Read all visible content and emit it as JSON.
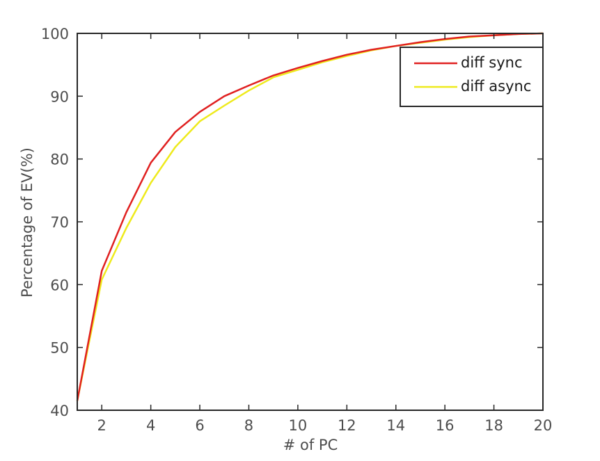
{
  "chart_data": {
    "type": "line",
    "title": "",
    "xlabel": "# of PC",
    "ylabel": "Percentage of EV(%)",
    "xlim": [
      1,
      20
    ],
    "ylim": [
      40,
      100
    ],
    "xticks": [
      2,
      4,
      6,
      8,
      10,
      12,
      14,
      16,
      18,
      20
    ],
    "xtick_labels": [
      "2",
      "4",
      "6",
      "8",
      "10",
      "12",
      "14",
      "16",
      "18",
      "20"
    ],
    "yticks": [
      40,
      50,
      60,
      70,
      80,
      90,
      100
    ],
    "ytick_labels": [
      "40",
      "50",
      "60",
      "70",
      "80",
      "90",
      "100"
    ],
    "grid": false,
    "legend_position": "top-right",
    "x": [
      1,
      2,
      3,
      4,
      5,
      6,
      7,
      8,
      9,
      10,
      11,
      12,
      13,
      14,
      15,
      16,
      17,
      18,
      19,
      20
    ],
    "series": [
      {
        "name": "diff sync",
        "color": "#e02020",
        "values": [
          41.5,
          62.2,
          71.5,
          79.4,
          84.3,
          87.5,
          90.0,
          91.7,
          93.3,
          94.5,
          95.6,
          96.6,
          97.4,
          98.0,
          98.6,
          99.1,
          99.5,
          99.7,
          99.9,
          100.0
        ]
      },
      {
        "name": "diff async",
        "color": "#eeea1c",
        "values": [
          41.5,
          60.8,
          69.0,
          76.2,
          81.9,
          86.0,
          88.5,
          90.9,
          93.0,
          94.2,
          95.4,
          96.4,
          97.3,
          98.0,
          98.5,
          99.0,
          99.4,
          99.7,
          99.9,
          100.0
        ]
      }
    ]
  }
}
